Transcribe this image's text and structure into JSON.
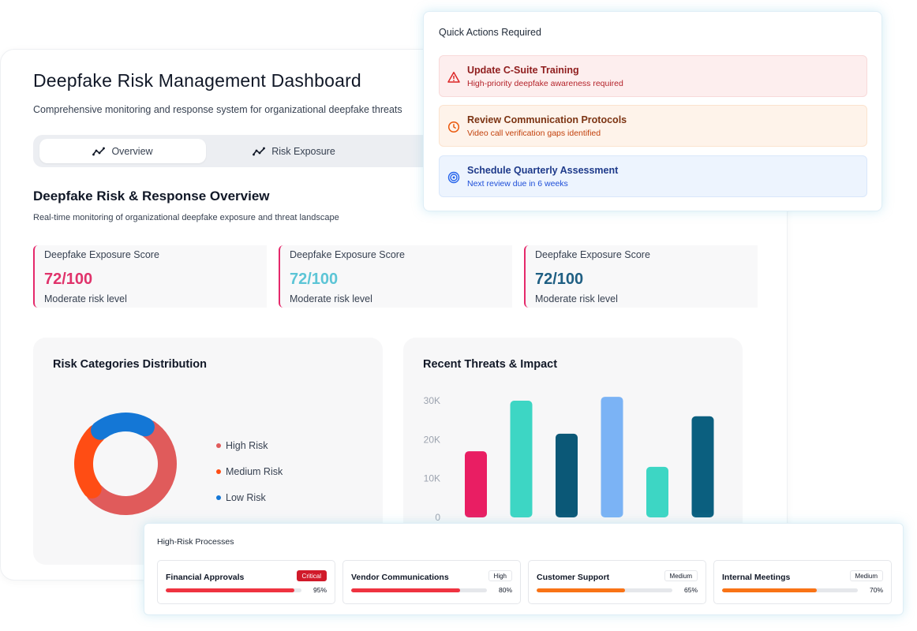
{
  "dashboard": {
    "title": "Deepfake Risk Management Dashboard",
    "subtitle": "Comprehensive monitoring and response system for organizational deepfake threats"
  },
  "tabs": [
    {
      "label": "Overview",
      "icon": "trend-line-icon",
      "active": true
    },
    {
      "label": "Risk Exposure",
      "icon": "trend-line-icon",
      "active": false
    }
  ],
  "overview": {
    "title": "Deepfake Risk & Response Overview",
    "subtitle": "Real-time monitoring of organizational deepfake exposure and threat landscape"
  },
  "score_cards": [
    {
      "label": "Deepfake Exposure Score",
      "value": "72/100",
      "level": "Moderate risk level",
      "color": "#e0336b"
    },
    {
      "label": "Deepfake Exposure Score",
      "value": "72/100",
      "level": "Moderate risk level",
      "color": "#5cc5d6"
    },
    {
      "label": "Deepfake Exposure Score",
      "value": "72/100",
      "level": "Moderate risk level",
      "color": "#1f5f83"
    }
  ],
  "risk_panel": {
    "title": "Risk Categories Distribution",
    "legend": [
      {
        "label": "High Risk",
        "color": "#e05b5b"
      },
      {
        "label": "Medium Risk",
        "color": "#ff4d14"
      },
      {
        "label": "Low Risk",
        "color": "#1477d6"
      }
    ]
  },
  "threats_panel": {
    "title": "Recent Threats & Impact"
  },
  "quick_actions": {
    "title": "Quick Actions Required",
    "items": [
      {
        "title": "Update C-Suite Training",
        "subtitle": "High-priority deepfake awareness required",
        "icon": "warning-triangle-icon",
        "color": "#dc2626"
      },
      {
        "title": "Review Communication Protocols",
        "subtitle": "Video call verification gaps identified",
        "icon": "clock-icon",
        "color": "#ea580c"
      },
      {
        "title": "Schedule Quarterly Assessment",
        "subtitle": "Next review due in 6 weeks",
        "icon": "target-icon",
        "color": "#2563eb"
      }
    ]
  },
  "high_risk": {
    "title": "High-Risk Processes",
    "items": [
      {
        "name": "Financial Approvals",
        "badge": "Critical",
        "percent": 95,
        "percent_label": "95%",
        "color": "#ef3340"
      },
      {
        "name": "Vendor Communications",
        "badge": "High",
        "percent": 80,
        "percent_label": "80%",
        "color": "#ef3340"
      },
      {
        "name": "Customer Support",
        "badge": "Medium",
        "percent": 65,
        "percent_label": "65%",
        "color": "#f97316"
      },
      {
        "name": "Internal Meetings",
        "badge": "Medium",
        "percent": 70,
        "percent_label": "70%",
        "color": "#f97316"
      }
    ]
  },
  "chart_data": [
    {
      "type": "pie",
      "variant": "donut",
      "title": "Risk Categories Distribution",
      "labels": [
        "High Risk",
        "Medium Risk",
        "Low Risk"
      ],
      "values": [
        55,
        25,
        20
      ],
      "colors": [
        "#e05b5b",
        "#ff4d14",
        "#1477d6"
      ],
      "legend": "right"
    },
    {
      "type": "bar",
      "title": "Recent Threats & Impact",
      "categories": [
        "",
        "",
        "",
        "",
        "",
        ""
      ],
      "values": [
        17000,
        30000,
        21500,
        31000,
        13000,
        26000
      ],
      "colors": [
        "#e91e63",
        "#3dd6c4",
        "#0b5877",
        "#7bb3f5",
        "#3dd6c4",
        "#0b5f7f"
      ],
      "yticks": [
        "0",
        "10K",
        "20K",
        "30K"
      ],
      "ylim": [
        0,
        32000
      ],
      "grid": false
    }
  ]
}
